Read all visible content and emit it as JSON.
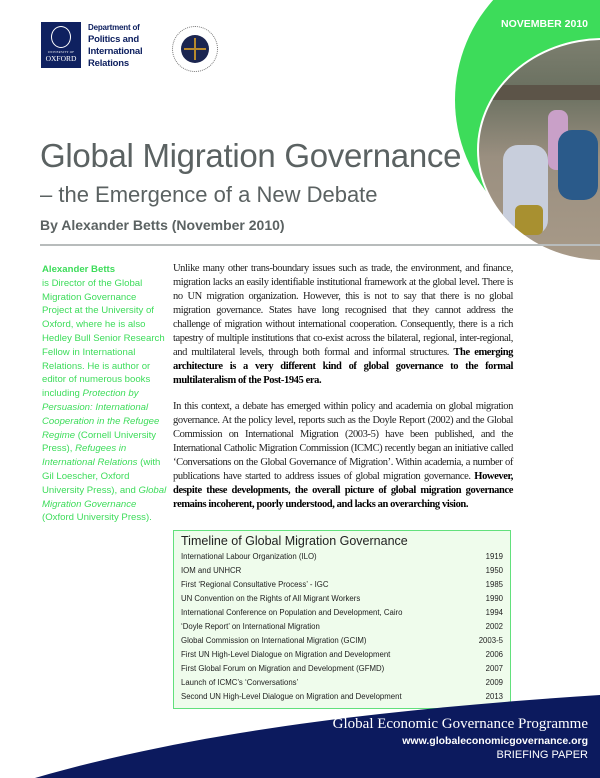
{
  "header": {
    "oxford_logo": {
      "small": "UNIVERSITY OF",
      "big": "OXFORD"
    },
    "department": [
      "Department of",
      "Politics and",
      "International",
      "Relations"
    ],
    "date": "NOVEMBER 2010"
  },
  "title": "Global Migration Governance",
  "subtitle": "– the Emergence of a New Debate",
  "byline": "By Alexander Betts (November 2010)",
  "bio": {
    "name": "Alexander Betts",
    "text1": "is Director of the Global Migration Governance Project at the University of Oxford, where he is also Hedley Bull Senior Research Fellow in International Relations. He is author or editor of numerous books including ",
    "book1": "Protection by Persuasion: International Cooperation in the Refugee Regime",
    "text2": " (Cornell University Press), ",
    "book2": "Refugees in International Relations",
    "text3": " (with Gil Loescher, Oxford University Press), and ",
    "book3": "Global Migration Governance",
    "text4": " (Oxford University Press)."
  },
  "body": {
    "p1": "Unlike many other trans-boundary issues such as trade, the environment, and finance, migration lacks an easily identifiable institutional framework at the global level. There is no UN migration organization. However, this is not to say that there is no global migration governance. States have long recognised that they cannot address the challenge of migration without international cooperation. Consequently, there is a rich tapestry of multiple institutions that co-exist across the bilateral, regional, inter-regional, and multilateral levels, through both formal and informal structures. ",
    "p1_bold": "The emerging architecture is a very different kind of global governance to the formal multilateralism of the Post-1945 era.",
    "p2": "In this context, a debate has emerged within policy and academia on global migration governance. At the policy level, reports such as the Doyle Report (2002) and the Global Commission on International Migration (2003-5) have been published, and the International Catholic Migration Commission (ICMC) recently began an initiative called ‘Conversations on the Global Governance of Migration’. Within academia, a number of publications have started to address issues of global migration governance. ",
    "p2_bold": "However, despite these developments, the overall picture of global migration governance remains incoherent, poorly understood, and lacks an overarching vision."
  },
  "timeline": {
    "title": "Timeline of Global Migration Governance",
    "rows": [
      {
        "event": "International Labour Organization (ILO)",
        "year": "1919"
      },
      {
        "event": "IOM and UNHCR",
        "year": "1950"
      },
      {
        "event": "First ‘Regional Consultative Process’ - IGC",
        "year": "1985"
      },
      {
        "event": "UN Convention on the Rights of All Migrant Workers",
        "year": "1990"
      },
      {
        "event": "International Conference on Population and Development, Cairo",
        "year": "1994"
      },
      {
        "event": "‘Doyle Report’ on International Migration",
        "year": "2002"
      },
      {
        "event": "Global Commission on International Migration (GCIM)",
        "year": "2003-5"
      },
      {
        "event": "First UN High-Level Dialogue on Migration and Development",
        "year": "2006"
      },
      {
        "event": "First Global Forum on Migration and Development (GFMD)",
        "year": "2007"
      },
      {
        "event": "Launch of ICMC’s ‘Conversations’",
        "year": "2009"
      },
      {
        "event": "Second UN High-Level Dialogue on Migration and Development",
        "year": "2013"
      }
    ]
  },
  "footer": {
    "programme": "Global Economic Governance Programme",
    "website": "www.globaleconomicgovernance.org",
    "series": "BRIEFING PAPER"
  },
  "colors": {
    "green": "#3ddc5a",
    "navy": "#0c1a5e",
    "title_gray": "#5b6262"
  }
}
